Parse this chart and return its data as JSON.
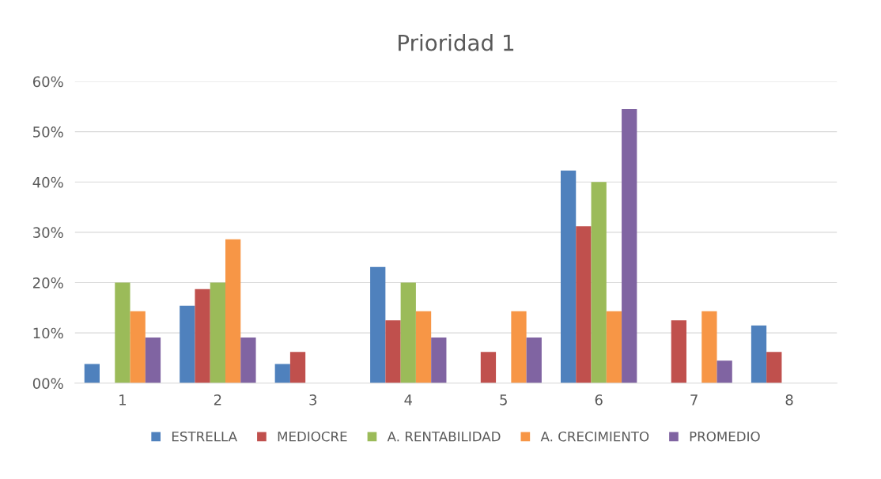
{
  "chart_data": {
    "type": "bar",
    "title": "Prioridad 1",
    "categories": [
      "1",
      "2",
      "3",
      "4",
      "5",
      "6",
      "7",
      "8"
    ],
    "series": [
      {
        "name": "ESTRELLA",
        "color": "#4f81bd",
        "values": [
          3.8,
          15.4,
          3.8,
          23.1,
          null,
          42.3,
          null,
          11.5
        ]
      },
      {
        "name": "MEDIOCRE",
        "color": "#c0504d",
        "values": [
          null,
          18.7,
          6.2,
          12.5,
          6.2,
          31.2,
          12.5,
          6.2
        ]
      },
      {
        "name": "A. RENTABILIDAD",
        "color": "#9bbb59",
        "values": [
          20,
          20,
          null,
          20,
          null,
          40,
          null,
          null
        ]
      },
      {
        "name": "A. CRECIMIENTO",
        "color": "#f79646",
        "values": [
          14.3,
          28.6,
          null,
          14.3,
          14.3,
          14.3,
          14.3,
          null
        ]
      },
      {
        "name": "PROMEDIO",
        "color": "#8064a2",
        "values": [
          9.1,
          9.1,
          null,
          9.1,
          9.1,
          54.5,
          4.5,
          null
        ]
      }
    ],
    "ylim": [
      0,
      60
    ],
    "yticks": [
      {
        "value": 0,
        "label": "00%"
      },
      {
        "value": 10,
        "label": "10%"
      },
      {
        "value": 20,
        "label": "20%"
      },
      {
        "value": 30,
        "label": "30%"
      },
      {
        "value": 40,
        "label": "40%"
      },
      {
        "value": 50,
        "label": "50%"
      },
      {
        "value": 60,
        "label": "60%"
      }
    ],
    "grid": "y",
    "legend": "bottom"
  }
}
